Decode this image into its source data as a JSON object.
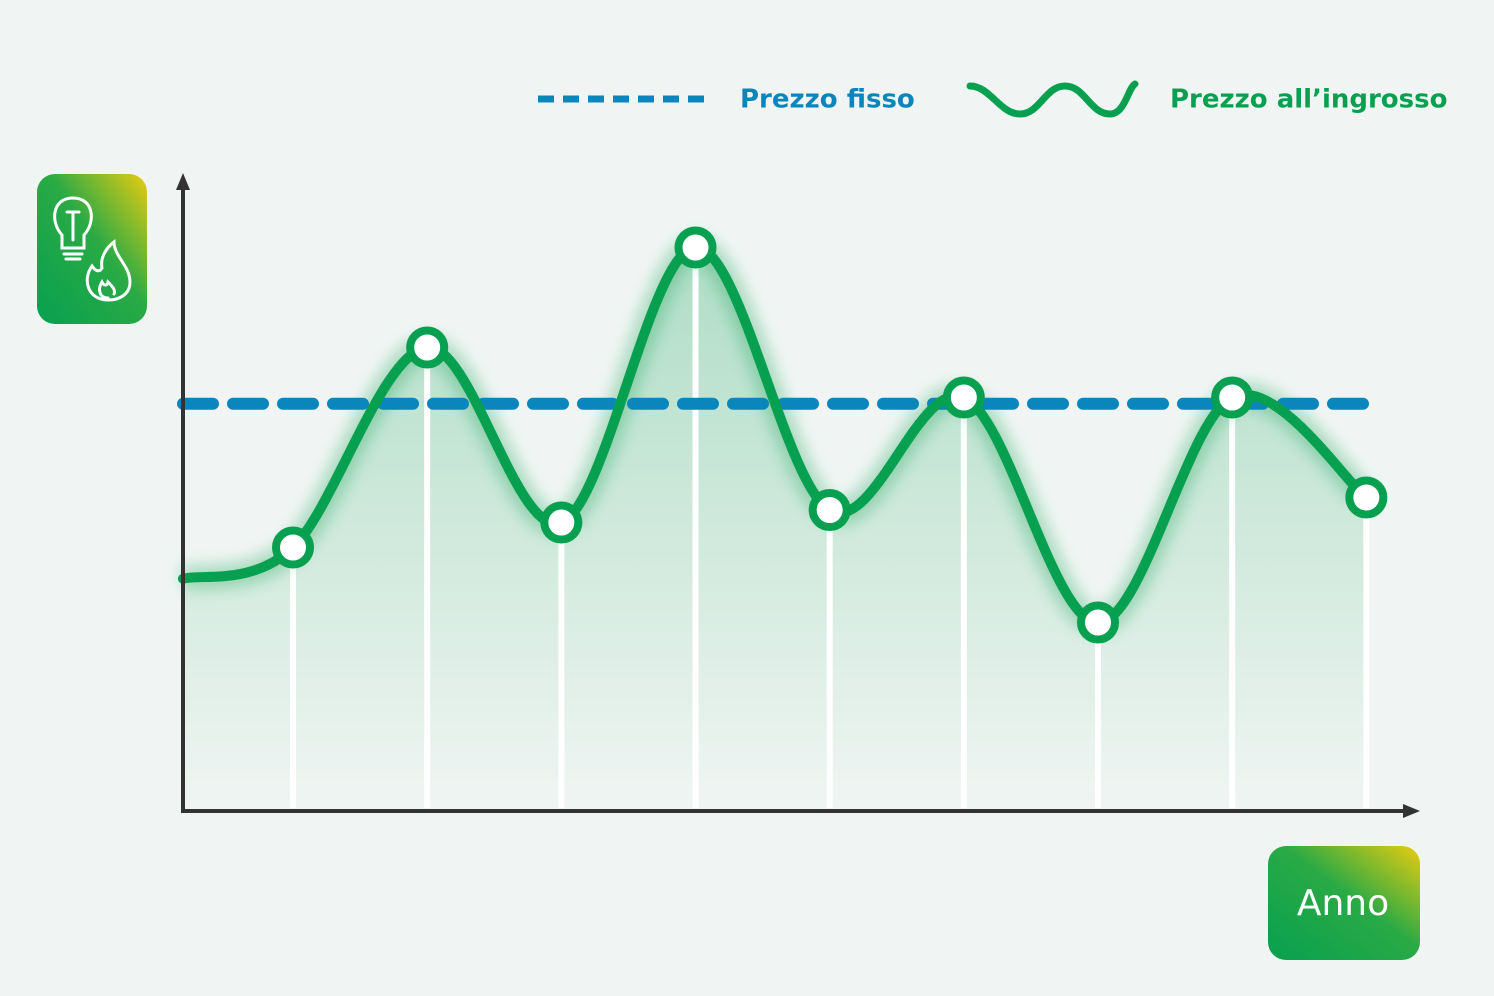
{
  "chart_data": {
    "type": "line",
    "x_label": "Anno",
    "x": [
      0.18,
      1,
      2,
      3,
      4,
      5,
      6,
      7,
      8,
      9
    ],
    "xlim": [
      0.18,
      9.4
    ],
    "ylim": [
      0,
      100
    ],
    "series": [
      {
        "name": "Prezzo fisso",
        "color": "#0b86bd",
        "style": "dashed",
        "values": [
          65,
          65,
          65,
          65,
          65,
          65,
          65,
          65,
          65,
          65
        ]
      },
      {
        "name": "Prezzo all’ingrosso",
        "color": "#07a050",
        "style": "solid",
        "values": [
          37,
          42,
          74,
          46,
          90,
          48,
          66,
          30,
          66,
          50
        ]
      }
    ]
  }
}
